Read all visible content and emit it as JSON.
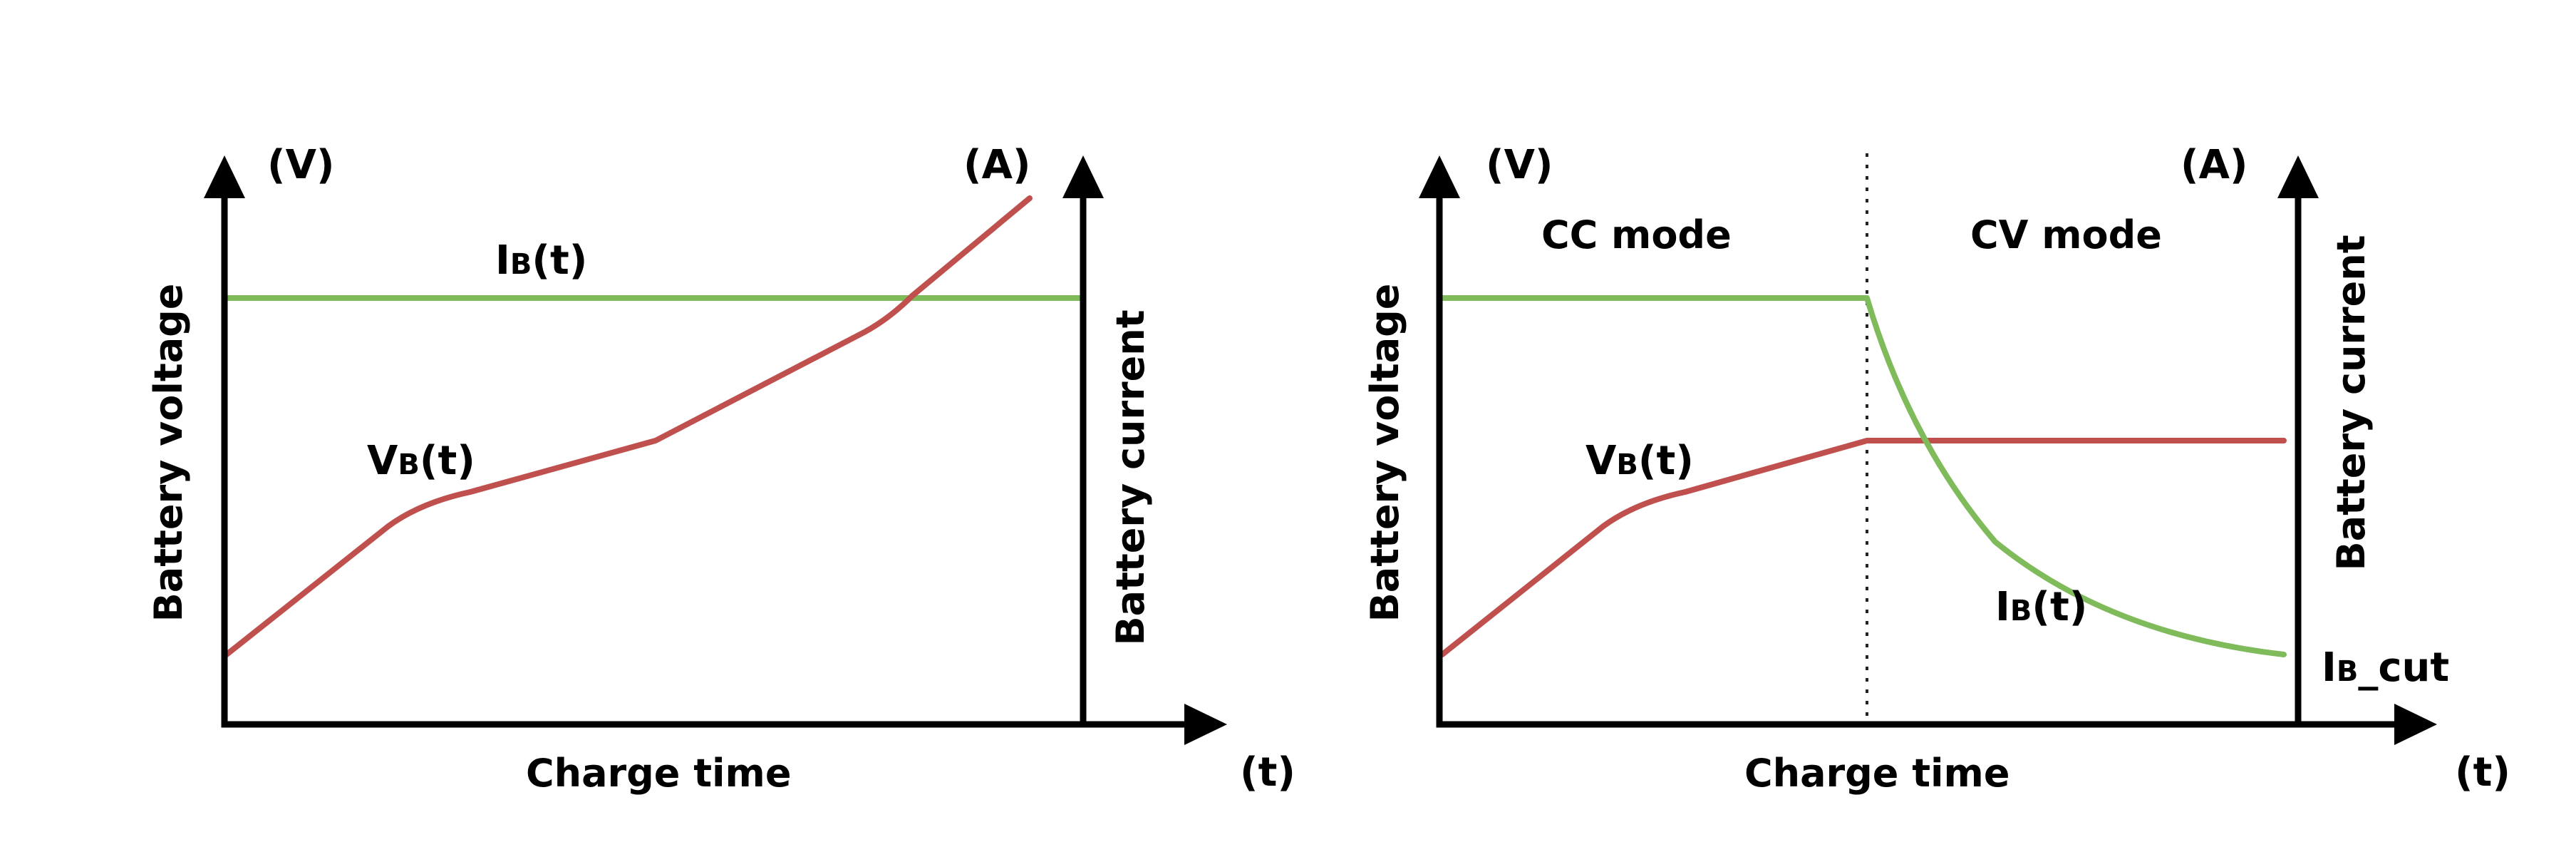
{
  "left_chart": {
    "y_left_unit": "(V)",
    "y_right_unit": "(A)",
    "x_unit": "(t)",
    "y_left_label": "Battery voltage",
    "y_right_label": "Battery current",
    "x_label": "Charge time",
    "current_label": {
      "main": "I",
      "sub": "B",
      "arg": "(t)"
    },
    "voltage_label": {
      "main": "V",
      "sub": "B",
      "arg": "(t)"
    },
    "colors": {
      "voltage": "#c0504d",
      "current": "#7fba5b"
    }
  },
  "right_chart": {
    "y_left_unit": "(V)",
    "y_right_unit": "(A)",
    "x_unit": "(t)",
    "y_left_label": "Battery voltage",
    "y_right_label": "Battery current",
    "x_label": "Charge time",
    "mode_cc": "CC mode",
    "mode_cv": "CV mode",
    "current_label": {
      "main": "I",
      "sub": "B",
      "arg": "(t)"
    },
    "voltage_label": {
      "main": "V",
      "sub": "B",
      "arg": "(t)"
    },
    "cutoff_label": {
      "main": "I",
      "sub": "B",
      "arg": "_cut"
    },
    "colors": {
      "voltage": "#c0504d",
      "current": "#7fba5b"
    }
  }
}
